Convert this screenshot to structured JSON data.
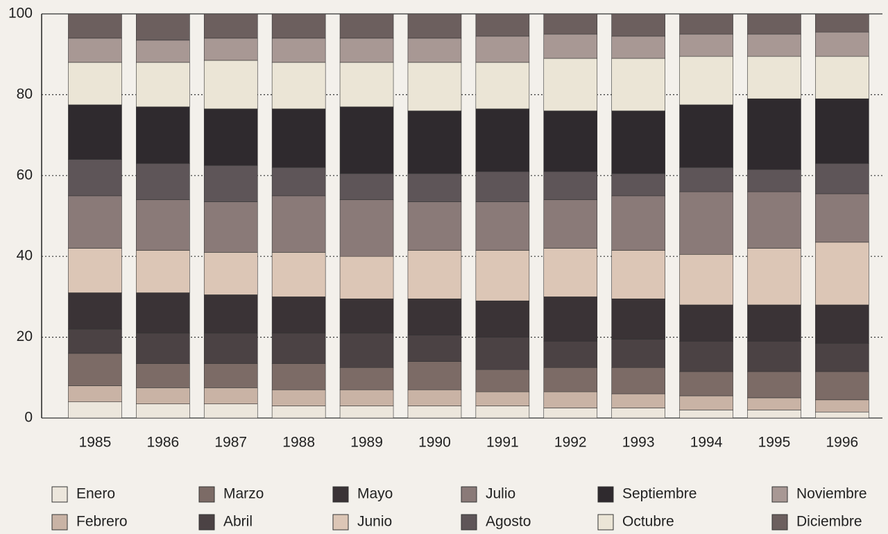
{
  "chart_data": {
    "type": "stacked_bar",
    "categories": [
      "1985",
      "1986",
      "1987",
      "1988",
      "1989",
      "1990",
      "1991",
      "1992",
      "1993",
      "1994",
      "1995",
      "1996"
    ],
    "series": [
      {
        "name": "Enero",
        "color": "#ece6dc",
        "values": [
          4,
          3.5,
          3.5,
          3,
          3,
          3,
          3,
          2.5,
          2.5,
          2,
          2,
          1.5
        ]
      },
      {
        "name": "Febrero",
        "color": "#c9b3a5",
        "values": [
          4,
          4,
          4,
          4,
          4,
          4,
          3.5,
          4,
          3.5,
          3.5,
          3,
          3
        ]
      },
      {
        "name": "Marzo",
        "color": "#7c6b66",
        "values": [
          8,
          6,
          6,
          6.5,
          5.5,
          7,
          5.5,
          6,
          6.5,
          6,
          6.5,
          7
        ]
      },
      {
        "name": "Abril",
        "color": "#4b4244",
        "values": [
          6,
          7.5,
          7.5,
          7.5,
          8.5,
          6.5,
          8,
          6.5,
          7,
          7.5,
          7.5,
          7
        ]
      },
      {
        "name": "Mayo",
        "color": "#3a3336",
        "values": [
          9,
          10,
          9.5,
          9,
          8.5,
          9,
          9,
          11,
          10,
          9,
          9,
          9.5
        ]
      },
      {
        "name": "Junio",
        "color": "#dcc6b6",
        "values": [
          11,
          10.5,
          10.5,
          11,
          10.5,
          12,
          12.5,
          12,
          12,
          12.5,
          14,
          15.5
        ]
      },
      {
        "name": "Julio",
        "color": "#8a7a78",
        "values": [
          13,
          12.5,
          12.5,
          14,
          14,
          12,
          12,
          12,
          13.5,
          15.5,
          14,
          12
        ]
      },
      {
        "name": "Agosto",
        "color": "#5e5558",
        "values": [
          9,
          9,
          9,
          7,
          6.5,
          7,
          7.5,
          7,
          5.5,
          6,
          5.5,
          7.5
        ]
      },
      {
        "name": "Septiembre",
        "color": "#2f2a2e",
        "values": [
          13.5,
          14,
          14,
          14.5,
          16.5,
          15.5,
          15.5,
          15,
          15.5,
          15.5,
          17.5,
          16
        ]
      },
      {
        "name": "Octubre",
        "color": "#ebe5d6",
        "values": [
          10.5,
          11,
          12,
          11.5,
          11,
          12,
          11.5,
          13,
          13,
          12,
          10.5,
          10.5
        ]
      },
      {
        "name": "Noviembre",
        "color": "#a89894",
        "values": [
          6,
          5.5,
          5.5,
          6,
          6,
          6,
          6.5,
          6,
          5.5,
          5.5,
          5.5,
          6
        ]
      },
      {
        "name": "Diciembre",
        "color": "#6c5f5e",
        "values": [
          6,
          6.5,
          6,
          6,
          6,
          6,
          5.5,
          5,
          5.5,
          5,
          5,
          4.5
        ]
      }
    ],
    "ylim": [
      0,
      100
    ],
    "yticks": [
      0,
      20,
      40,
      60,
      80,
      100
    ],
    "grid": true
  }
}
